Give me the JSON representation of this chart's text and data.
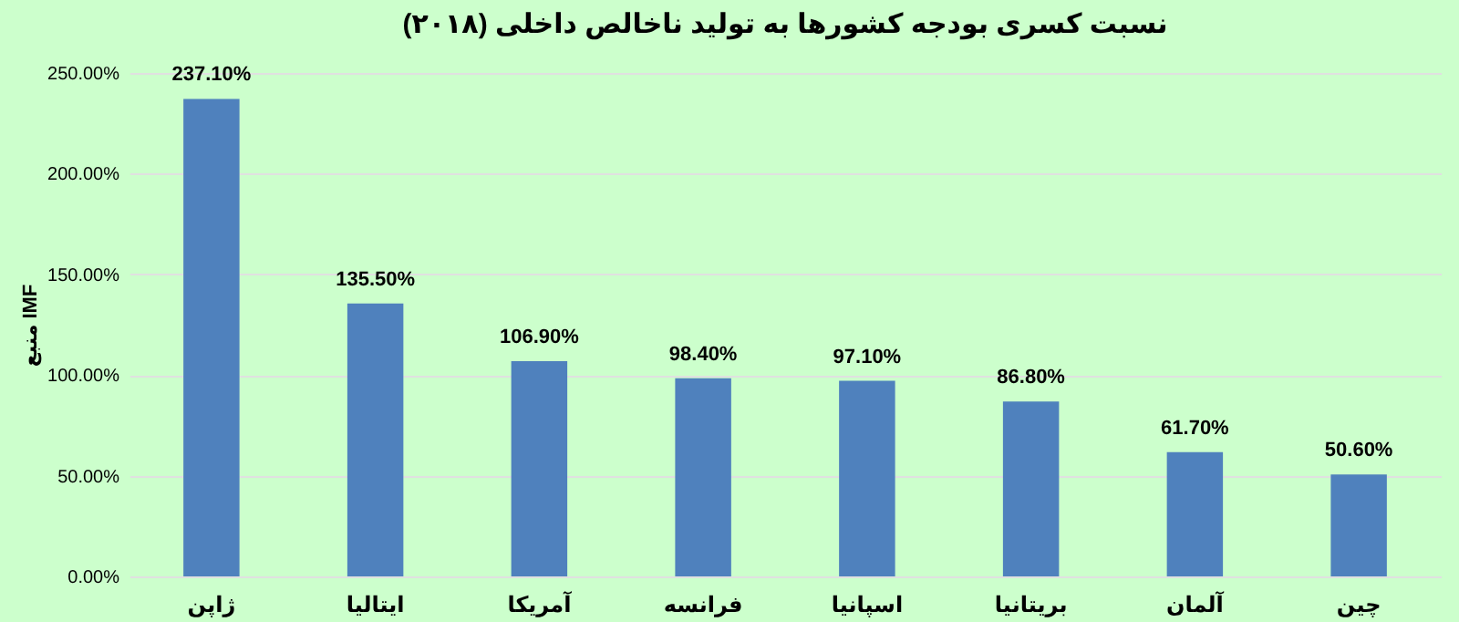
{
  "chart_data": {
    "type": "bar",
    "title": "نسبت کسری بودجه کشورها به تولید ناخالص داخلی (۲۰۱۸)",
    "ylabel": "منبع IMF",
    "categories": [
      "ژاپن",
      "ایتالیا",
      "آمریکا",
      "فرانسه",
      "اسپانیا",
      "بریتانیا",
      "آلمان",
      "چین"
    ],
    "values": [
      237.1,
      135.5,
      106.9,
      98.4,
      97.1,
      86.8,
      61.7,
      50.6
    ],
    "value_labels": [
      "237.10%",
      "135.50%",
      "106.90%",
      "98.40%",
      "97.10%",
      "86.80%",
      "61.70%",
      "50.60%"
    ],
    "color": "#4f81bd",
    "ylim": [
      0,
      250
    ],
    "yticks": [
      {
        "value": 0,
        "label": "0.00%"
      },
      {
        "value": 50,
        "label": "50.00%"
      },
      {
        "value": 100,
        "label": "100.00%"
      },
      {
        "value": 150,
        "label": "150.00%"
      },
      {
        "value": 200,
        "label": "200.00%"
      },
      {
        "value": 250,
        "label": "250.00%"
      }
    ],
    "grid": "y"
  }
}
